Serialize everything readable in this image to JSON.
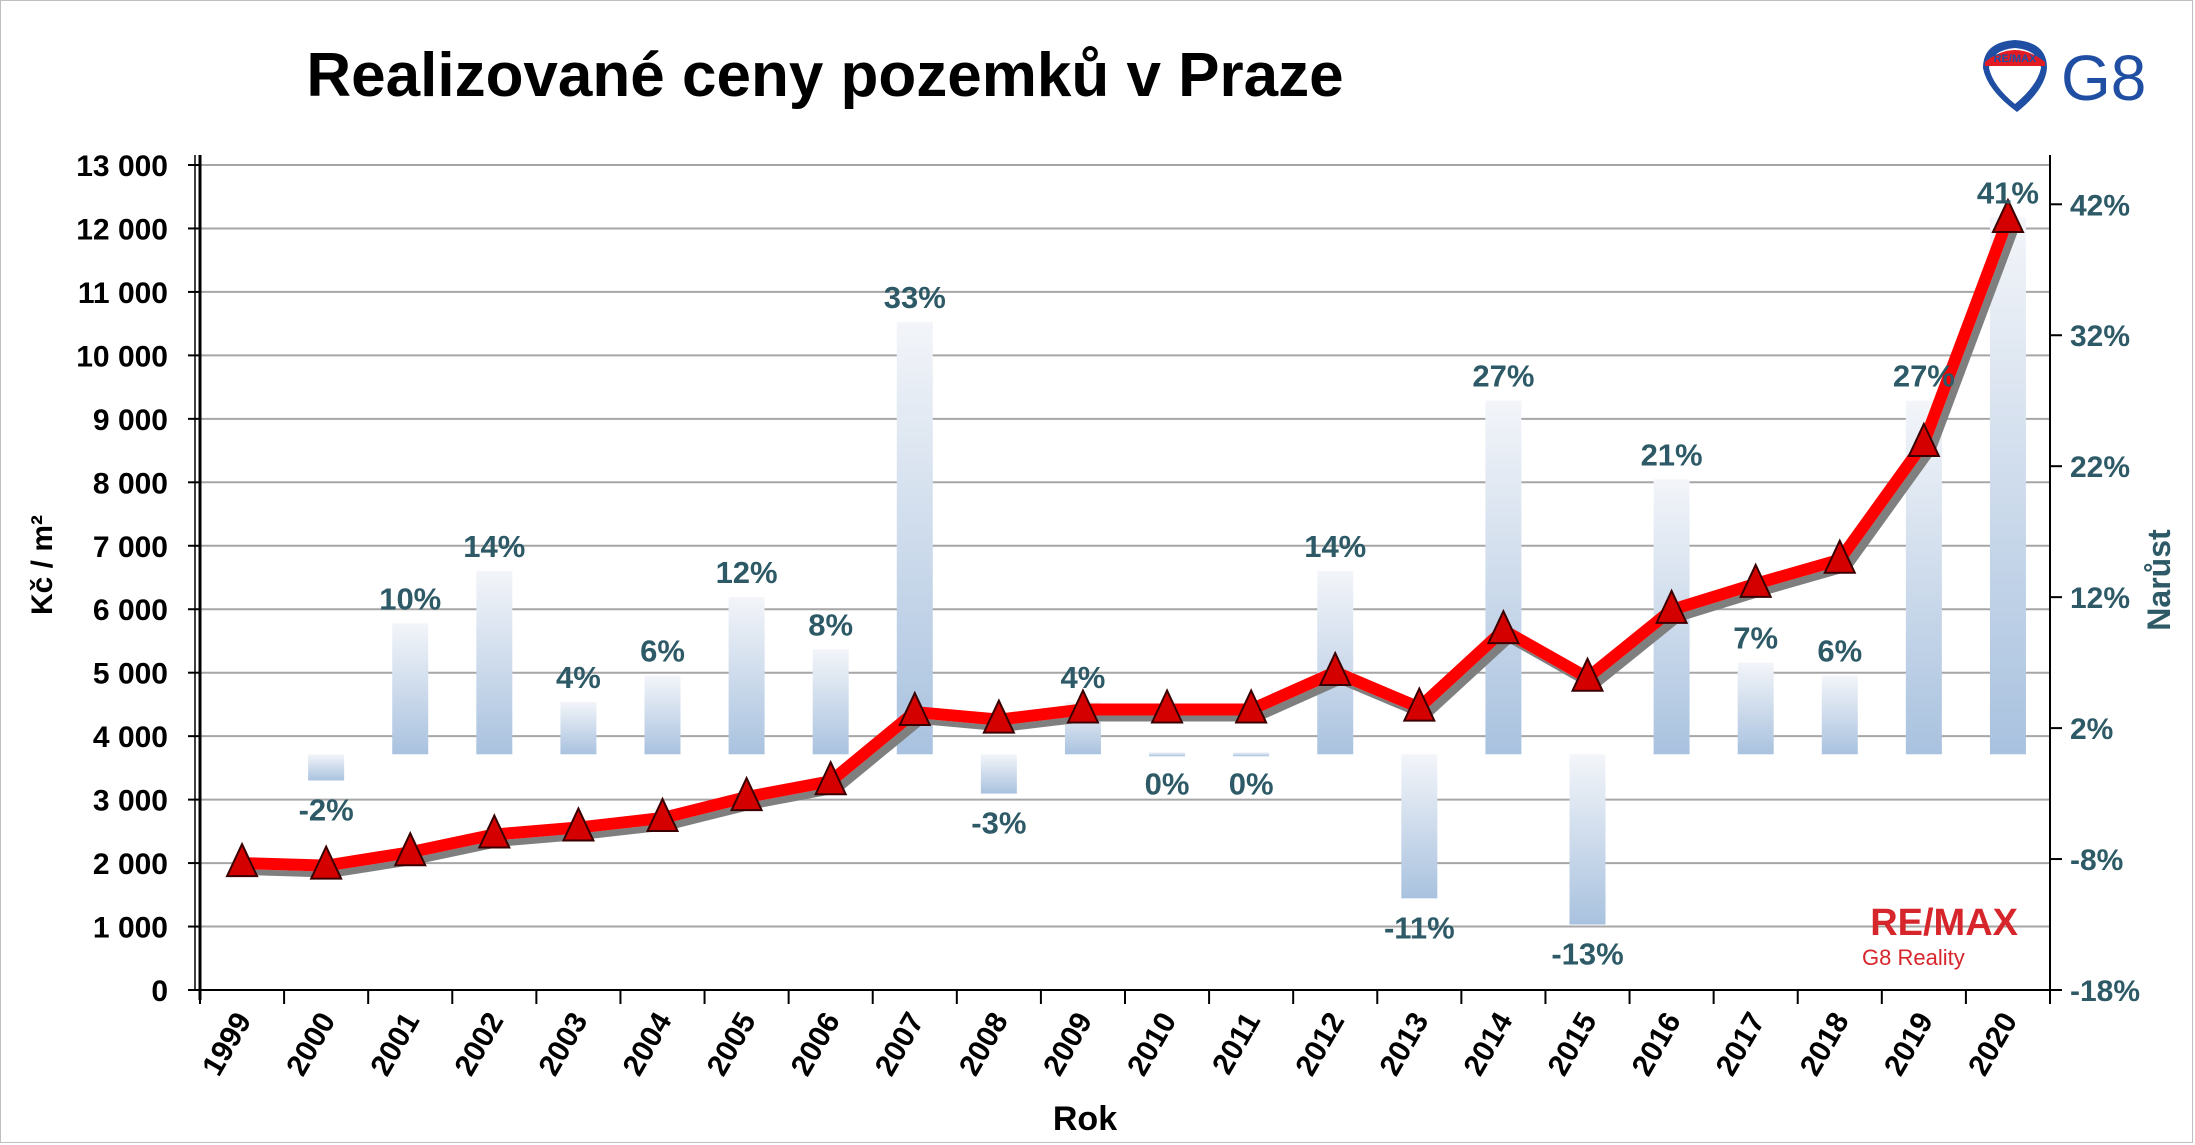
{
  "chart_data": {
    "type": "bar+line",
    "title": "Realizované ceny pozemků v Praze",
    "xlabel": "Rok",
    "ylabel_left": "Kč / m²",
    "ylabel_right": "Narůst",
    "categories": [
      "1999",
      "2000",
      "2001",
      "2002",
      "2003",
      "2004",
      "2005",
      "2006",
      "2007",
      "2008",
      "2009",
      "2010",
      "2011",
      "2012",
      "2013",
      "2014",
      "2015",
      "2016",
      "2017",
      "2018",
      "2019",
      "2020"
    ],
    "price_per_m2": [
      2000,
      1960,
      2170,
      2450,
      2560,
      2710,
      3040,
      3290,
      4380,
      4260,
      4420,
      4420,
      4420,
      5010,
      4450,
      5670,
      4920,
      5990,
      6400,
      6780,
      8620,
      12150
    ],
    "growth_pct": [
      null,
      -2,
      10,
      14,
      4,
      6,
      12,
      8,
      33,
      -3,
      4,
      0,
      0,
      14,
      -11,
      27,
      -13,
      21,
      7,
      6,
      27,
      41
    ],
    "growth_labels": [
      "",
      "-2%",
      "10%",
      "14%",
      "4%",
      "6%",
      "12%",
      "8%",
      "33%",
      "-3%",
      "4%",
      "0%",
      "0%",
      "14%",
      "-11%",
      "27%",
      "-13%",
      "21%",
      "7%",
      "6%",
      "27%",
      "41%"
    ],
    "ylim_left": [
      0,
      13000
    ],
    "yticks_left": [
      "0",
      "1 000",
      "2 000",
      "3 000",
      "4 000",
      "5 000",
      "6 000",
      "7 000",
      "8 000",
      "9 000",
      "10 000",
      "11 000",
      "12 000",
      "13 000"
    ],
    "ylim_right": [
      -18,
      45
    ],
    "yticks_right": [
      "-18%",
      "-8%",
      "2%",
      "12%",
      "22%",
      "32%",
      "42%"
    ],
    "yticks_right_values": [
      -18,
      -8,
      2,
      12,
      22,
      32,
      42
    ],
    "grid": true,
    "colors": {
      "line": "#ff0000",
      "marker": "#d40000",
      "bar_top": "#eef1f6",
      "bar_bottom": "#a9c2df",
      "label": "#2d5a66"
    }
  },
  "watermark": {
    "brand": "RE/MAX",
    "sub": "G8 Reality"
  },
  "logo": {
    "text": "G8",
    "small": "RE/MAX"
  }
}
